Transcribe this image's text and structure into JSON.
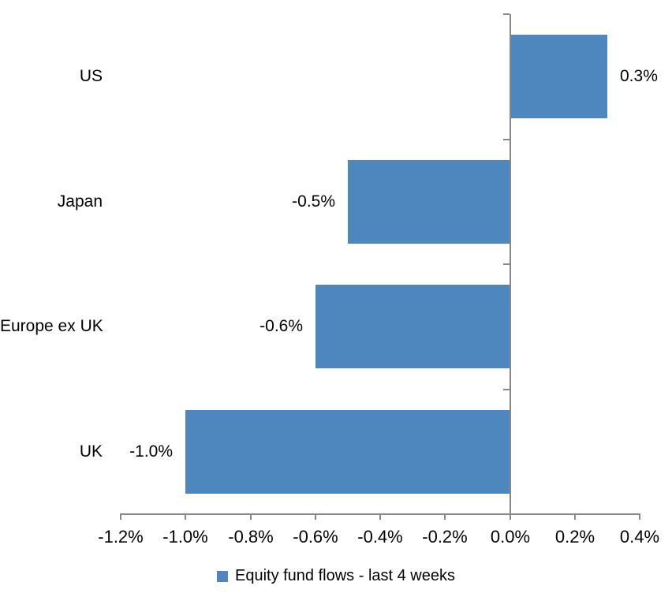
{
  "chart_data": {
    "type": "bar",
    "orientation": "horizontal",
    "title": "",
    "categories": [
      "US",
      "Japan",
      "Europe ex UK",
      "UK"
    ],
    "values": [
      0.3,
      -0.5,
      -0.6,
      -1.0
    ],
    "data_labels": [
      "0.3%",
      "-0.5%",
      "-0.6%",
      "-1.0%"
    ],
    "series_name": "Equity fund flows - last 4 weeks",
    "xlim": [
      -1.2,
      0.4
    ],
    "x_tick_values": [
      -1.2,
      -1.0,
      -0.8,
      -0.6,
      -0.4,
      -0.2,
      0.0,
      0.2,
      0.4
    ],
    "x_tick_labels": [
      "-1.2%",
      "-1.0%",
      "-0.8%",
      "-0.6%",
      "-0.4%",
      "-0.2%",
      "0.0%",
      "0.2%",
      "0.4%"
    ],
    "grid": false,
    "legend_position": "bottom",
    "bar_color": "#4E86BE",
    "axis_color": "#878787",
    "text_color": "#000000",
    "background_color": "#FFFFFF"
  },
  "legend": {
    "label": "Equity fund flows - last 4 weeks",
    "marker_color": "#4E86BE"
  }
}
